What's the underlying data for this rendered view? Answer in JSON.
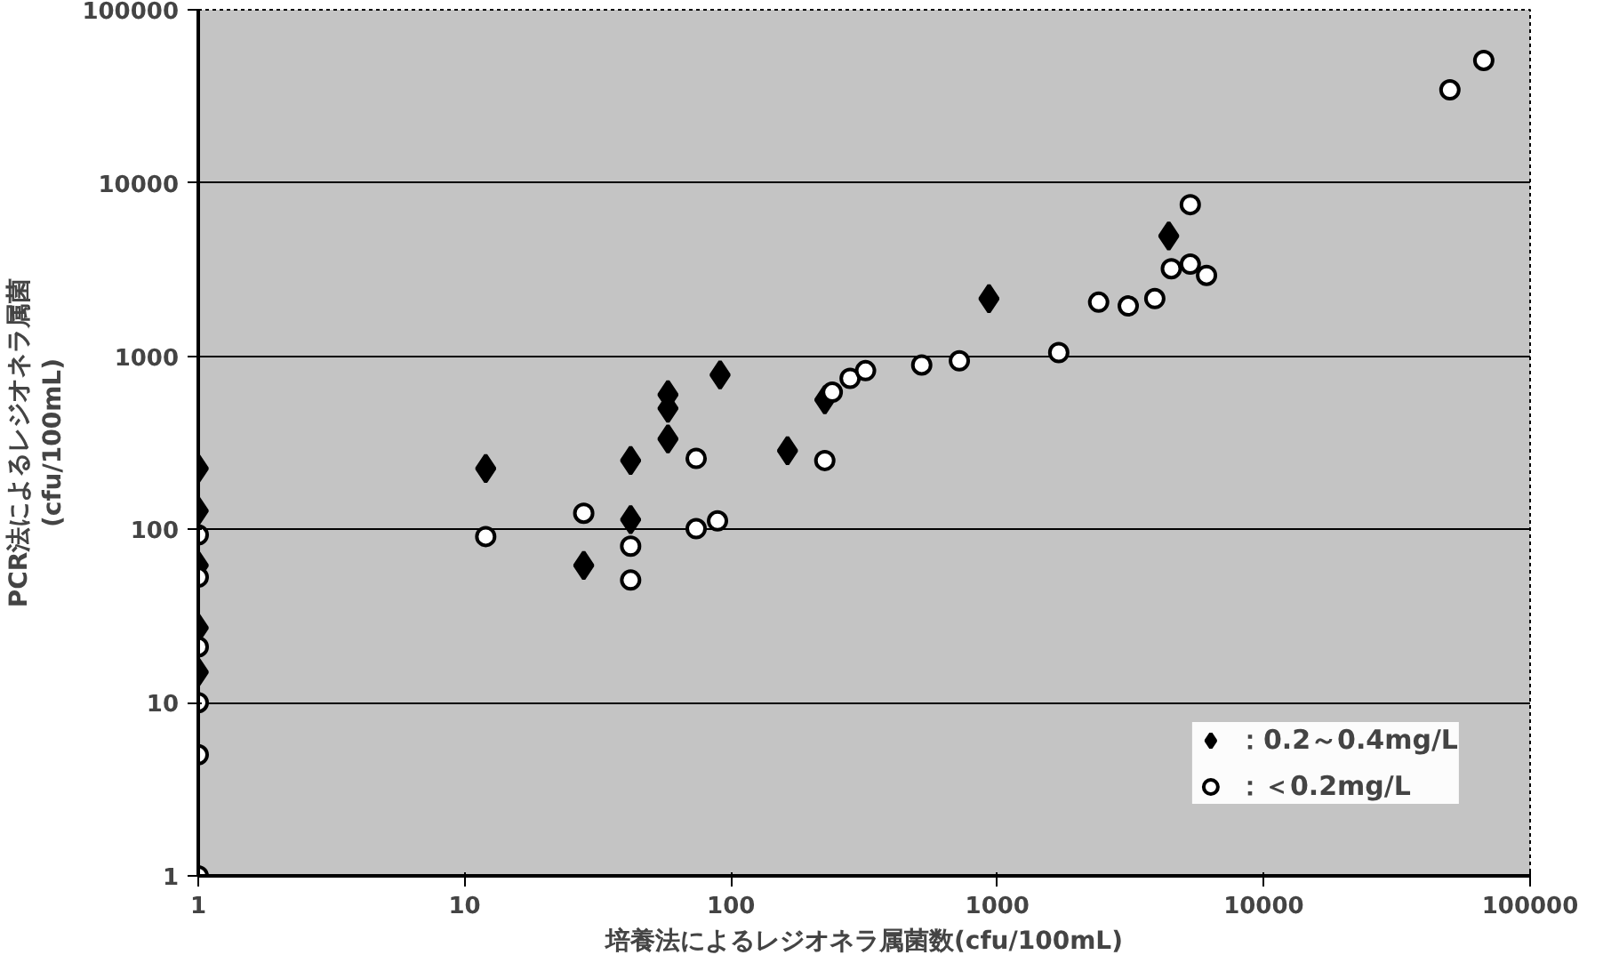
{
  "chart_data": {
    "type": "scatter",
    "xlabel": "培養法によるレジオネラ属菌数(cfu/100mL)",
    "ylabel": "PCR法によるレジオネラ属菌\n(cfu/100mL)",
    "log": "xy",
    "xlim": [
      1,
      100000
    ],
    "ylim": [
      1,
      100000
    ],
    "xticks": [
      1,
      10,
      100,
      1000,
      10000,
      100000
    ],
    "yticks": [
      1,
      10,
      100,
      1000,
      10000,
      100000
    ],
    "grid": "y",
    "legend": "bottom right",
    "series": [
      {
        "name": "：0.2～0.4mg/L",
        "color": "#000000",
        "marker": "diamond",
        "x": [
          1,
          1,
          1,
          1,
          1,
          12,
          28,
          42,
          42,
          58,
          58,
          58,
          91,
          163,
          225,
          930,
          4400
        ],
        "values": [
          225,
          128,
          62,
          27,
          15,
          225,
          62,
          250,
          114,
          333,
          600,
          500,
          780,
          285,
          560,
          2150,
          4950
        ]
      },
      {
        "name": "：＜0.2mg/L",
        "color": "#ffffff",
        "marker": "circle",
        "x": [
          1,
          1,
          1,
          1,
          1,
          1,
          12,
          28,
          42,
          42,
          74,
          74,
          89,
          225,
          240,
          280,
          320,
          520,
          720,
          1700,
          2400,
          3100,
          3900,
          4500,
          5300,
          6100,
          5300,
          50000,
          67000
        ],
        "values": [
          93,
          53,
          21,
          10,
          5,
          1,
          91,
          124,
          80,
          51,
          257,
          101,
          112,
          250,
          620,
          745,
          825,
          890,
          940,
          1050,
          2050,
          1950,
          2150,
          3200,
          3400,
          2930,
          7500,
          34500,
          51000
        ]
      }
    ]
  }
}
